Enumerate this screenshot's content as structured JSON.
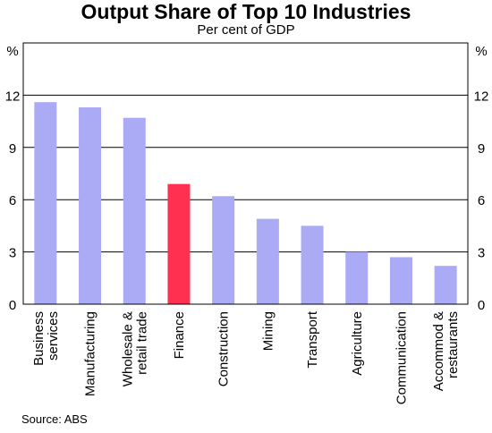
{
  "chart_data": {
    "type": "bar",
    "title": "Output Share of Top 10 Industries",
    "subtitle": "Per cent of GDP",
    "ylabel_left": "%",
    "ylabel_right": "%",
    "ylim": [
      0,
      15
    ],
    "yticks": [
      0,
      3,
      6,
      9,
      12
    ],
    "grid": true,
    "categories": [
      [
        "Business",
        "services"
      ],
      [
        "Manufacturing"
      ],
      [
        "Wholesale &",
        "retail trade"
      ],
      [
        "Finance"
      ],
      [
        "Construction"
      ],
      [
        "Mining"
      ],
      [
        "Transport"
      ],
      [
        "Agriculture"
      ],
      [
        "Communication"
      ],
      [
        "Accommod &",
        "restaurants"
      ]
    ],
    "values": [
      11.6,
      11.3,
      10.7,
      6.9,
      6.2,
      4.9,
      4.5,
      3.0,
      2.7,
      2.2
    ],
    "highlight_index": 3,
    "colors": {
      "bar": "#aaaaf5",
      "highlight": "#ff3050"
    },
    "source": "Source: ABS"
  }
}
